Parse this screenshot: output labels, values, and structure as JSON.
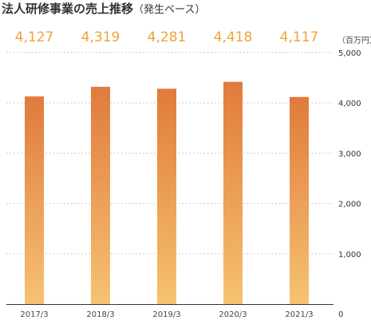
{
  "chart_data": {
    "type": "bar",
    "title": "法人研修事業の売上推移",
    "subtitle": "（発生ベース）",
    "unit_label": "（百万円）",
    "categories": [
      "2017/3",
      "2018/3",
      "2019/3",
      "2020/3",
      "2021/3"
    ],
    "values": [
      4127,
      4319,
      4281,
      4418,
      4117
    ],
    "value_labels": [
      "4,127",
      "4,319",
      "4,281",
      "4,418",
      "4,117"
    ],
    "ylim": [
      0,
      5000
    ],
    "y_ticks": [
      0,
      1000,
      2000,
      3000,
      4000,
      5000
    ],
    "y_tick_labels": [
      "0",
      "1,000",
      "2,000",
      "3,000",
      "4,000",
      "5,000"
    ],
    "grid": true,
    "colors": {
      "bar_top": "#e07b3c",
      "bar_bottom": "#f6c272",
      "value_label": "#f0a23a",
      "grid": "#bbbbbb",
      "axis": "#333333"
    }
  }
}
